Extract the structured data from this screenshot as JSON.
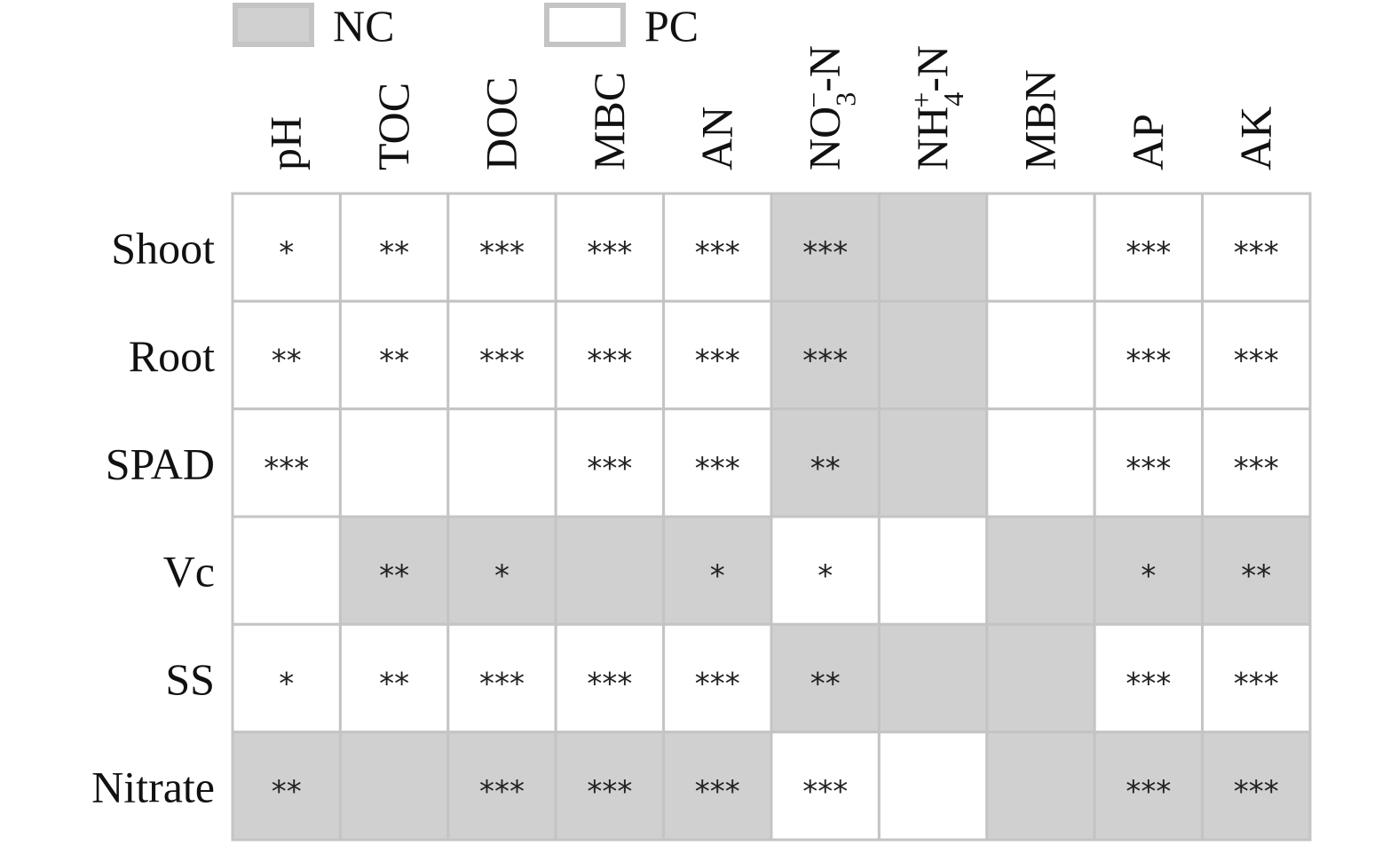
{
  "chart_data": {
    "type": "heatmap",
    "series": [
      {
        "name": "NC",
        "color": "#d0d0d0"
      },
      {
        "name": "PC",
        "color": "#ffffff"
      }
    ],
    "columns": [
      [
        {
          "text": "pH"
        }
      ],
      [
        {
          "text": "TOC"
        }
      ],
      [
        {
          "text": "DOC"
        }
      ],
      [
        {
          "text": "MBC"
        }
      ],
      [
        {
          "text": "AN"
        }
      ],
      [
        {
          "text": "NO"
        },
        {
          "text": "3",
          "shift": "sub"
        },
        {
          "text": "−",
          "shift": "super"
        },
        {
          "text": "-N"
        }
      ],
      [
        {
          "text": "NH"
        },
        {
          "text": "4",
          "shift": "sub"
        },
        {
          "text": "+",
          "shift": "super"
        },
        {
          "text": "-N"
        }
      ],
      [
        {
          "text": "MBN"
        }
      ],
      [
        {
          "text": "AP"
        }
      ],
      [
        {
          "text": "AK"
        }
      ]
    ],
    "rows": [
      "Shoot",
      "Root",
      "SPAD",
      "Vc",
      "SS",
      "Nitrate"
    ],
    "cells": [
      [
        {
          "series": "PC",
          "label": "*"
        },
        {
          "series": "PC",
          "label": "**"
        },
        {
          "series": "PC",
          "label": "***"
        },
        {
          "series": "PC",
          "label": "***"
        },
        {
          "series": "PC",
          "label": "***"
        },
        {
          "series": "NC",
          "label": "***"
        },
        {
          "series": "NC",
          "label": null
        },
        {
          "series": "PC",
          "label": null
        },
        {
          "series": "PC",
          "label": "***"
        },
        {
          "series": "PC",
          "label": "***"
        }
      ],
      [
        {
          "series": "PC",
          "label": "**"
        },
        {
          "series": "PC",
          "label": "**"
        },
        {
          "series": "PC",
          "label": "***"
        },
        {
          "series": "PC",
          "label": "***"
        },
        {
          "series": "PC",
          "label": "***"
        },
        {
          "series": "NC",
          "label": "***"
        },
        {
          "series": "NC",
          "label": null
        },
        {
          "series": "PC",
          "label": null
        },
        {
          "series": "PC",
          "label": "***"
        },
        {
          "series": "PC",
          "label": "***"
        }
      ],
      [
        {
          "series": "PC",
          "label": "***"
        },
        {
          "series": "PC",
          "label": null
        },
        {
          "series": "PC",
          "label": null
        },
        {
          "series": "PC",
          "label": "***"
        },
        {
          "series": "PC",
          "label": "***"
        },
        {
          "series": "NC",
          "label": "**"
        },
        {
          "series": "NC",
          "label": null
        },
        {
          "series": "PC",
          "label": null
        },
        {
          "series": "PC",
          "label": "***"
        },
        {
          "series": "PC",
          "label": "***"
        }
      ],
      [
        {
          "series": "PC",
          "label": null
        },
        {
          "series": "NC",
          "label": "**"
        },
        {
          "series": "NC",
          "label": "*"
        },
        {
          "series": "NC",
          "label": null
        },
        {
          "series": "NC",
          "label": "*"
        },
        {
          "series": "PC",
          "label": "*"
        },
        {
          "series": "PC",
          "label": null
        },
        {
          "series": "NC",
          "label": null
        },
        {
          "series": "NC",
          "label": "*"
        },
        {
          "series": "NC",
          "label": "**"
        }
      ],
      [
        {
          "series": "PC",
          "label": "*"
        },
        {
          "series": "PC",
          "label": "**"
        },
        {
          "series": "PC",
          "label": "***"
        },
        {
          "series": "PC",
          "label": "***"
        },
        {
          "series": "PC",
          "label": "***"
        },
        {
          "series": "NC",
          "label": "**"
        },
        {
          "series": "NC",
          "label": null
        },
        {
          "series": "NC",
          "label": null
        },
        {
          "series": "PC",
          "label": "***"
        },
        {
          "series": "PC",
          "label": "***"
        }
      ],
      [
        {
          "series": "NC",
          "label": "**"
        },
        {
          "series": "NC",
          "label": null
        },
        {
          "series": "NC",
          "label": "***"
        },
        {
          "series": "NC",
          "label": "***"
        },
        {
          "series": "NC",
          "label": "***"
        },
        {
          "series": "PC",
          "label": "***"
        },
        {
          "series": "PC",
          "label": null
        },
        {
          "series": "NC",
          "label": null
        },
        {
          "series": "NC",
          "label": "***"
        },
        {
          "series": "NC",
          "label": "***"
        }
      ]
    ]
  }
}
